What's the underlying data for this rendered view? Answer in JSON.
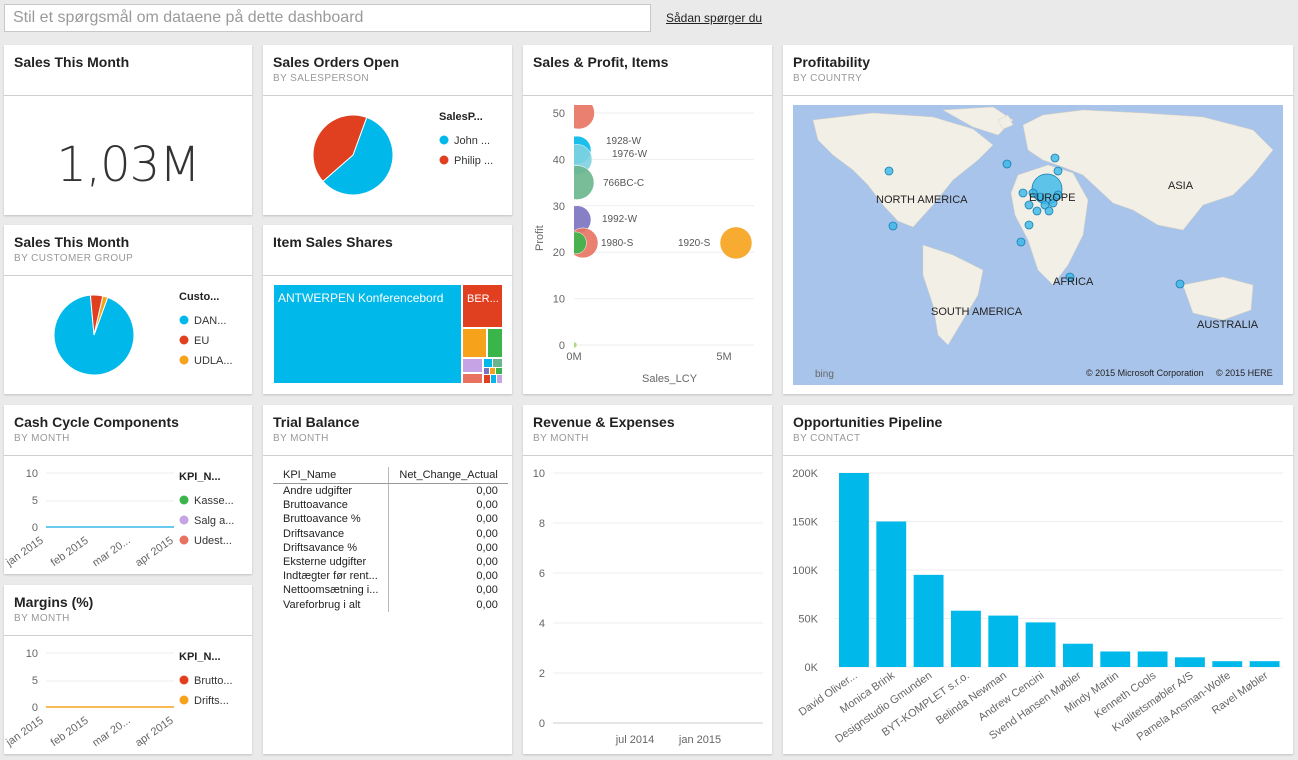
{
  "qa": {
    "placeholder": "Stil et spørgsmål om dataene på dette dashboard",
    "howto": "Sådan spørger du"
  },
  "colors": {
    "blue": "#01b8aa",
    "tile_blue": "#00b4f0",
    "red": "#e0401f",
    "orange": "#f7a21b",
    "green": "#3ab54a",
    "purple": "#c6a3e4",
    "salmon": "#e8725f",
    "accent_line": "#38b8e8"
  },
  "tiles": {
    "sales_month": {
      "title": "Sales This Month",
      "value": "1,03M"
    },
    "orders_open": {
      "title": "Sales Orders Open",
      "subtitle": "BY SALESPERSON",
      "legend_title": "SalesP...",
      "legend": [
        "John ...",
        "Philip ..."
      ]
    },
    "sales_profit": {
      "title": "Sales & Profit, Items",
      "xlabel": "Sales_LCY",
      "ylabel": "Profit",
      "bubbles": [
        "1928-W",
        "1976-W",
        "766BC-C",
        "1992-W",
        "1980-S",
        "1920-S"
      ]
    },
    "profitability": {
      "title": "Profitability",
      "subtitle": "BY COUNTRY",
      "labels": {
        "na": "NORTH AMERICA",
        "eu": "EUROPE",
        "asia": "ASIA",
        "africa": "AFRICA",
        "sa": "SOUTH AMERICA",
        "au": "AUSTRALIA"
      },
      "copyright1": "© 2015 Microsoft Corporation",
      "copyright2": "© 2015 HERE",
      "bing": "bing"
    },
    "sales_cust": {
      "title": "Sales This Month",
      "subtitle": "BY CUSTOMER GROUP",
      "legend_title": "Custo...",
      "legend": [
        "DAN...",
        "EU",
        "UDLA..."
      ]
    },
    "item_sales": {
      "title": "Item Sales Shares",
      "label_main": "ANTWERPEN Konferencebord",
      "label_second": "BER..."
    },
    "cash_cycle": {
      "title": "Cash Cycle Components",
      "subtitle": "BY MONTH",
      "legend_title": "KPI_N...",
      "legend": [
        "Kasse...",
        "Salg a...",
        "Udest..."
      ],
      "y_ticks": [
        "10",
        "5",
        "0"
      ],
      "x_ticks": [
        "jan 2015",
        "feb 2015",
        "mar 20...",
        "apr 2015"
      ]
    },
    "margins": {
      "title": "Margins (%)",
      "subtitle": "BY MONTH",
      "legend_title": "KPI_N...",
      "legend": [
        "Brutto...",
        "Drifts..."
      ],
      "y_ticks": [
        "10",
        "5",
        "0"
      ],
      "x_ticks": [
        "jan 2015",
        "feb 2015",
        "mar 20...",
        "apr 2015"
      ]
    },
    "trial_balance": {
      "title": "Trial Balance",
      "subtitle": "BY MONTH",
      "col1": "KPI_Name",
      "col2": "Net_Change_Actual",
      "rows": [
        {
          "name": "Andre udgifter",
          "value": "0,00"
        },
        {
          "name": "Bruttoavance",
          "value": "0,00"
        },
        {
          "name": "Bruttoavance %",
          "value": "0,00"
        },
        {
          "name": "Driftsavance",
          "value": "0,00"
        },
        {
          "name": "Driftsavance %",
          "value": "0,00"
        },
        {
          "name": "Eksterne udgifter",
          "value": "0,00"
        },
        {
          "name": "Indtægter før rent...",
          "value": "0,00"
        },
        {
          "name": "Nettoomsætning i...",
          "value": "0,00"
        },
        {
          "name": "Vareforbrug i alt",
          "value": "0,00"
        }
      ]
    },
    "revenue": {
      "title": "Revenue & Expenses",
      "subtitle": "BY MONTH",
      "y_ticks": [
        "10",
        "8",
        "6",
        "4",
        "2",
        "0"
      ],
      "x_ticks": [
        "jul 2014",
        "jan 2015"
      ]
    },
    "pipeline": {
      "title": "Opportunities Pipeline",
      "subtitle": "BY CONTACT"
    }
  },
  "chart_data": [
    {
      "type": "pie",
      "title": "Sales Orders Open",
      "categories": [
        "John ...",
        "Philip ..."
      ],
      "values": [
        58,
        42
      ],
      "colors": [
        "#01b8ea",
        "#e0401f"
      ]
    },
    {
      "type": "pie",
      "title": "Sales This Month",
      "categories": [
        "DAN...",
        "EU",
        "UDLA..."
      ],
      "values": [
        93,
        5,
        2
      ],
      "colors": [
        "#01b8ea",
        "#e0401f",
        "#f7a21b"
      ]
    },
    {
      "type": "scatter",
      "title": "Sales & Profit, Items",
      "xlabel": "Sales_LCY",
      "ylabel": "Profit",
      "xlim": [
        0,
        6000000
      ],
      "ylim": [
        0,
        50
      ],
      "x_ticks": [
        "0M",
        "5M"
      ],
      "y_ticks": [
        "0",
        "10",
        "20",
        "30",
        "40",
        "50"
      ],
      "points": [
        {
          "label": "",
          "x": 150000,
          "y": 50,
          "color": "#e8725f"
        },
        {
          "label": "1928-W",
          "x": 100000,
          "y": 42,
          "color": "#01b8ea"
        },
        {
          "label": "1976-W",
          "x": 100000,
          "y": 40,
          "color": "#7fd1e0"
        },
        {
          "label": "766BC-C",
          "x": 100000,
          "y": 35,
          "color": "#69b58d"
        },
        {
          "label": "1992-W",
          "x": 100000,
          "y": 27,
          "color": "#7b72c0"
        },
        {
          "label": "1980-S",
          "x": 300000,
          "y": 22,
          "color": "#e8725f"
        },
        {
          "label": "",
          "x": 50000,
          "y": 22,
          "color": "#3ab54a"
        },
        {
          "label": "1920-S",
          "x": 5400000,
          "y": 22,
          "color": "#f7a21b"
        },
        {
          "label": "",
          "x": 0,
          "y": 0,
          "color": "#a3d977"
        }
      ]
    },
    {
      "type": "bar",
      "title": "Opportunities Pipeline",
      "categories": [
        "David Oliver...",
        "Monica Brink",
        "Designstudio Gmunden",
        "BYT-KOMPLET s.r.o.",
        "Belinda Newman",
        "Andrew Cencini",
        "Svend Hansen Møbler",
        "Mindy Martin",
        "Kenneth Cools",
        "Kvalitetsmøbler A/S",
        "Pamela Ansman-Wolfe",
        "Ravel Møbler"
      ],
      "values": [
        200000,
        150000,
        95000,
        58000,
        53000,
        46000,
        24000,
        16000,
        16000,
        10000,
        6000,
        6000
      ],
      "ylim": [
        0,
        200000
      ],
      "y_ticks": [
        "0K",
        "50K",
        "100K",
        "150K",
        "200K"
      ],
      "color": "#01b8ea"
    },
    {
      "type": "line",
      "title": "Cash Cycle Components",
      "categories": [
        "jan 2015",
        "feb 2015",
        "mar 20...",
        "apr 2015"
      ],
      "series": [
        {
          "name": "Kasse...",
          "values": [
            0,
            0,
            0,
            0
          ]
        },
        {
          "name": "Salg a...",
          "values": [
            0,
            0,
            0,
            0
          ]
        },
        {
          "name": "Udest...",
          "values": [
            0,
            0,
            0,
            0
          ]
        }
      ],
      "ylim": [
        0,
        10
      ]
    },
    {
      "type": "line",
      "title": "Margins (%)",
      "categories": [
        "jan 2015",
        "feb 2015",
        "mar 20...",
        "apr 2015"
      ],
      "series": [
        {
          "name": "Brutto...",
          "values": [
            0,
            0,
            0,
            0
          ]
        },
        {
          "name": "Drifts...",
          "values": [
            0,
            0,
            0,
            0
          ]
        }
      ],
      "ylim": [
        0,
        10
      ]
    }
  ]
}
